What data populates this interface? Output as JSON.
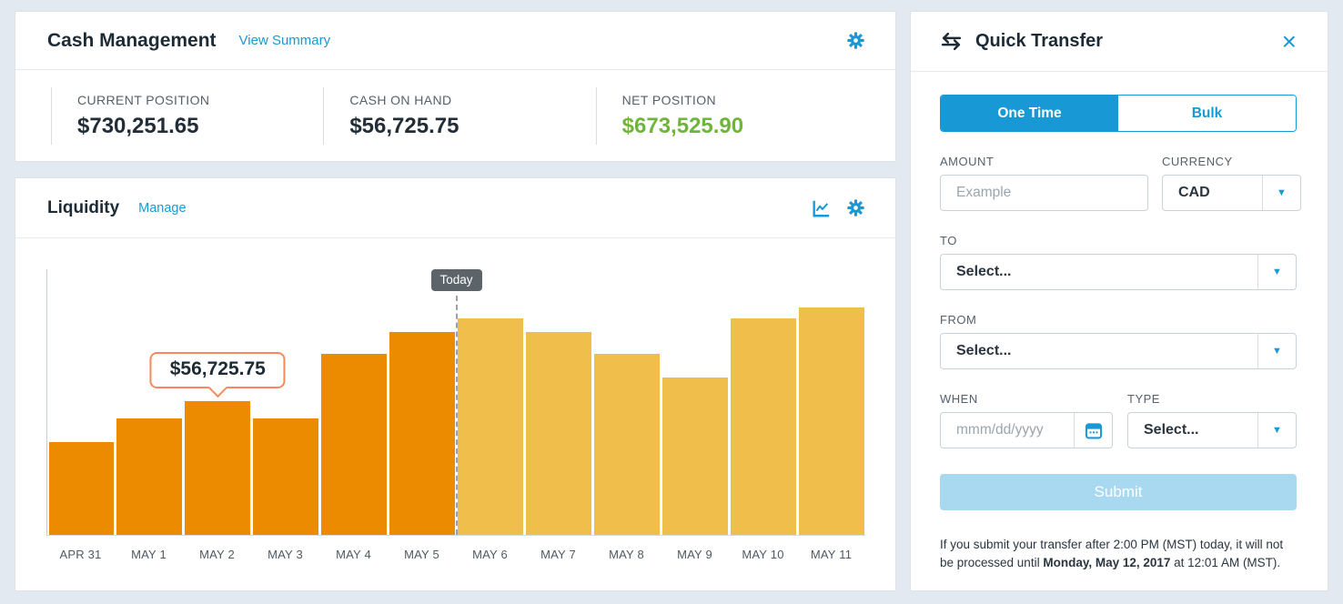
{
  "colors": {
    "accent_blue": "#1899D6",
    "positive_green": "#6FB53C",
    "bar_past_orange": "#ED8B00",
    "bar_future_yellow": "#F0BF4B",
    "page_background": "#E3E9F0"
  },
  "cash_management": {
    "title": "Cash Management",
    "view_summary_link": "View Summary",
    "gear_icon": "settings-gear",
    "stats": [
      {
        "label": "CURRENT POSITION",
        "value": "$730,251.65"
      },
      {
        "label": "CASH ON HAND",
        "value": "$56,725.75"
      },
      {
        "label": "NET POSITION",
        "value": "$673,525.90"
      }
    ]
  },
  "liquidity": {
    "title": "Liquidity",
    "manage_link": "Manage",
    "icons": [
      "line-chart-icon",
      "settings-gear"
    ]
  },
  "chart_data": {
    "type": "bar",
    "title": "Liquidity",
    "xlabel": "",
    "ylabel": "",
    "y_axis_tick_labels_visible": false,
    "grid": false,
    "categories": [
      "APR 31",
      "MAY 1",
      "MAY 2",
      "MAY 3",
      "MAY 4",
      "MAY 5",
      "MAY 6",
      "MAY 7",
      "MAY 8",
      "MAY 9",
      "MAY 10",
      "MAY 11"
    ],
    "values": [
      39400,
      49400,
      56725.75,
      49400,
      77200,
      86400,
      92200,
      86400,
      77200,
      67100,
      92200,
      96900
    ],
    "height_pct": [
      34.8,
      43.7,
      50.2,
      43.7,
      68.3,
      76.5,
      81.6,
      76.5,
      68.3,
      59.4,
      81.6,
      85.7
    ],
    "past_color": "#ED8B00",
    "future_color": "#F0BF4B",
    "today_index": 5,
    "today_label": "Today",
    "tooltip": {
      "index": 2,
      "text": "$56,725.75"
    }
  },
  "quick_transfer": {
    "title": "Quick Transfer",
    "transfer_icon": "swap-arrows",
    "close_label": "×",
    "tabs": [
      {
        "label": "One Time",
        "active": true
      },
      {
        "label": "Bulk",
        "active": false
      }
    ],
    "fields": {
      "amount_label": "AMOUNT",
      "amount_placeholder": "Example",
      "currency_label": "CURRENCY",
      "currency_value": "CAD",
      "to_label": "TO",
      "to_value": "Select...",
      "from_label": "FROM",
      "from_value": "Select...",
      "when_label": "WHEN",
      "when_placeholder": "mmm/dd/yyyy",
      "type_label": "TYPE",
      "type_value": "Select..."
    },
    "caret_icon": "▼",
    "submit_label": "Submit",
    "note": {
      "text_before": "If you submit your transfer after 2:00 PM (MST) today, it will not be processed until ",
      "bold": "Monday, May 12, 2017",
      "text_after": " at 12:01 AM (MST)."
    }
  }
}
